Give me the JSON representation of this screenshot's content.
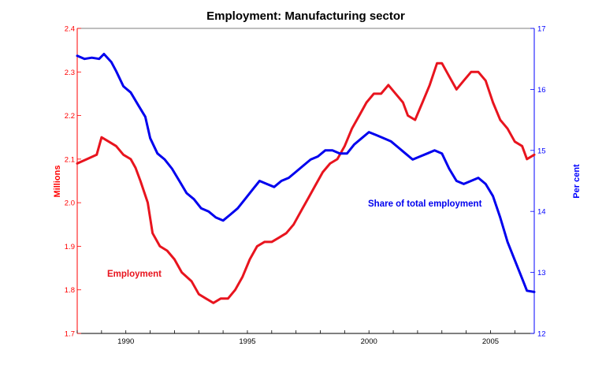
{
  "chart_data": {
    "type": "line",
    "title": "Employment: Manufacturing sector",
    "xlabel": "",
    "x_ticks": [
      "1990",
      "1995",
      "2000",
      "2005"
    ],
    "x_range": [
      1988.0,
      2006.8
    ],
    "y_left": {
      "label": "Millions",
      "range": [
        1.7,
        2.4
      ],
      "ticks": [
        "1.7",
        "1.8",
        "1.9",
        "2.0",
        "2.1",
        "2.2",
        "2.3",
        "2.4"
      ],
      "color": "#ff0000"
    },
    "y_right": {
      "label": "Per cent",
      "range": [
        12,
        17
      ],
      "ticks": [
        "12",
        "13",
        "14",
        "15",
        "16",
        "17"
      ],
      "color": "#0000ff"
    },
    "series": [
      {
        "name": "Employment",
        "axis": "left",
        "color": "#e8141e",
        "annotation": "Employment",
        "x": [
          1988.0,
          1988.4,
          1988.8,
          1989.0,
          1989.3,
          1989.6,
          1989.9,
          1990.2,
          1990.4,
          1990.6,
          1990.9,
          1991.1,
          1991.4,
          1991.7,
          1992.0,
          1992.3,
          1992.7,
          1993.0,
          1993.3,
          1993.6,
          1993.9,
          1994.2,
          1994.5,
          1994.8,
          1995.1,
          1995.4,
          1995.7,
          1996.0,
          1996.3,
          1996.6,
          1996.9,
          1997.2,
          1997.5,
          1997.8,
          1998.1,
          1998.4,
          1998.7,
          1999.0,
          1999.3,
          1999.6,
          1999.9,
          2000.2,
          2000.5,
          2000.8,
          2001.1,
          2001.4,
          2001.6,
          2001.9,
          2002.2,
          2002.5,
          2002.8,
          2003.0,
          2003.3,
          2003.6,
          2003.9,
          2004.2,
          2004.5,
          2004.8,
          2005.1,
          2005.4,
          2005.7,
          2006.0,
          2006.3,
          2006.5,
          2006.8
        ],
        "values": [
          2.09,
          2.1,
          2.11,
          2.15,
          2.14,
          2.13,
          2.11,
          2.1,
          2.08,
          2.05,
          2.0,
          1.93,
          1.9,
          1.89,
          1.87,
          1.84,
          1.82,
          1.79,
          1.78,
          1.77,
          1.78,
          1.78,
          1.8,
          1.83,
          1.87,
          1.9,
          1.91,
          1.91,
          1.92,
          1.93,
          1.95,
          1.98,
          2.01,
          2.04,
          2.07,
          2.09,
          2.1,
          2.13,
          2.17,
          2.2,
          2.23,
          2.25,
          2.25,
          2.27,
          2.25,
          2.23,
          2.2,
          2.19,
          2.23,
          2.27,
          2.32,
          2.32,
          2.29,
          2.26,
          2.28,
          2.3,
          2.3,
          2.28,
          2.23,
          2.19,
          2.17,
          2.14,
          2.13,
          2.1,
          2.11
        ]
      },
      {
        "name": "Share of total employment",
        "axis": "right",
        "color": "#0000ee",
        "annotation": "Share of total employment",
        "x": [
          1988.0,
          1988.3,
          1988.6,
          1988.9,
          1989.1,
          1989.4,
          1989.6,
          1989.9,
          1990.2,
          1990.5,
          1990.8,
          1991.0,
          1991.3,
          1991.6,
          1991.9,
          1992.2,
          1992.5,
          1992.8,
          1993.1,
          1993.4,
          1993.7,
          1994.0,
          1994.3,
          1994.6,
          1994.9,
          1995.2,
          1995.5,
          1995.8,
          1996.1,
          1996.4,
          1996.7,
          1997.0,
          1997.3,
          1997.6,
          1997.9,
          1998.2,
          1998.5,
          1998.8,
          1999.1,
          1999.4,
          1999.7,
          2000.0,
          2000.3,
          2000.6,
          2000.9,
          2001.2,
          2001.5,
          2001.8,
          2002.1,
          2002.4,
          2002.7,
          2003.0,
          2003.3,
          2003.6,
          2003.9,
          2004.2,
          2004.5,
          2004.8,
          2005.1,
          2005.4,
          2005.7,
          2006.0,
          2006.3,
          2006.5,
          2006.8
        ],
        "values": [
          16.55,
          16.5,
          16.52,
          16.5,
          16.58,
          16.45,
          16.3,
          16.05,
          15.95,
          15.75,
          15.55,
          15.2,
          14.95,
          14.85,
          14.7,
          14.5,
          14.3,
          14.2,
          14.05,
          14.0,
          13.9,
          13.85,
          13.95,
          14.05,
          14.2,
          14.35,
          14.5,
          14.45,
          14.4,
          14.5,
          14.55,
          14.65,
          14.75,
          14.85,
          14.9,
          15.0,
          15.0,
          14.95,
          14.95,
          15.1,
          15.2,
          15.3,
          15.25,
          15.2,
          15.15,
          15.05,
          14.95,
          14.85,
          14.9,
          14.95,
          15.0,
          14.95,
          14.7,
          14.5,
          14.45,
          14.5,
          14.55,
          14.45,
          14.25,
          13.9,
          13.5,
          13.2,
          12.9,
          12.7,
          12.68
        ]
      }
    ]
  }
}
